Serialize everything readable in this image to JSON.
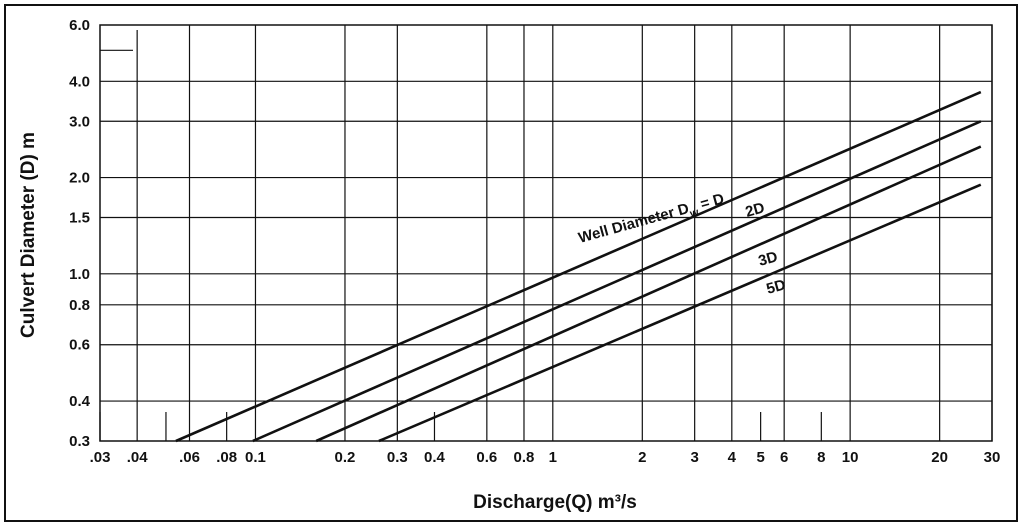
{
  "chart_data": {
    "type": "line",
    "title": "",
    "xlabel": "Discharge(Q) m³/s",
    "ylabel": "Culvert Diameter (D) m",
    "x_scale": "log",
    "y_scale": "log",
    "xlim": [
      0.03,
      30
    ],
    "ylim": [
      0.3,
      6.0
    ],
    "grid": true,
    "x_ticks": [
      {
        "value": 0.03,
        "label": ".03"
      },
      {
        "value": 0.04,
        "label": ".04"
      },
      {
        "value": 0.06,
        "label": ".06"
      },
      {
        "value": 0.08,
        "label": ".08"
      },
      {
        "value": 0.1,
        "label": "0.1"
      },
      {
        "value": 0.2,
        "label": "0.2"
      },
      {
        "value": 0.3,
        "label": "0.3"
      },
      {
        "value": 0.4,
        "label": "0.4"
      },
      {
        "value": 0.6,
        "label": "0.6"
      },
      {
        "value": 0.8,
        "label": "0.8"
      },
      {
        "value": 1,
        "label": "1"
      },
      {
        "value": 2,
        "label": "2"
      },
      {
        "value": 3,
        "label": "3"
      },
      {
        "value": 4,
        "label": "4"
      },
      {
        "value": 5,
        "label": "5"
      },
      {
        "value": 6,
        "label": "6"
      },
      {
        "value": 8,
        "label": "8"
      },
      {
        "value": 10,
        "label": "10"
      },
      {
        "value": 20,
        "label": "20"
      },
      {
        "value": 30,
        "label": "30"
      }
    ],
    "y_ticks": [
      {
        "value": 0.3,
        "label": "0.3"
      },
      {
        "value": 0.4,
        "label": "0.4"
      },
      {
        "value": 0.6,
        "label": "0.6"
      },
      {
        "value": 0.8,
        "label": "0.8"
      },
      {
        "value": 1.0,
        "label": "1.0"
      },
      {
        "value": 1.5,
        "label": "1.5"
      },
      {
        "value": 2.0,
        "label": "2.0"
      },
      {
        "value": 3.0,
        "label": "3.0"
      },
      {
        "value": 4.0,
        "label": "4.0"
      },
      {
        "value": 6.0,
        "label": "6.0"
      }
    ],
    "series": [
      {
        "name": "Well Diameter Dw = D",
        "x": [
          0.054,
          27.5
        ],
        "y": [
          0.3,
          3.7
        ]
      },
      {
        "name": "2D",
        "x": [
          0.098,
          27.5
        ],
        "y": [
          0.3,
          3.0
        ]
      },
      {
        "name": "3D",
        "x": [
          0.16,
          27.5
        ],
        "y": [
          0.3,
          2.5
        ]
      },
      {
        "name": "5D",
        "x": [
          0.26,
          27.5
        ],
        "y": [
          0.3,
          1.9
        ]
      }
    ],
    "labels": {
      "well_main": "Well Diameter D",
      "well_sub": "w",
      "well_eq": " = D",
      "l2d": "2D",
      "l3d": "3D",
      "l5d": "5D"
    }
  }
}
